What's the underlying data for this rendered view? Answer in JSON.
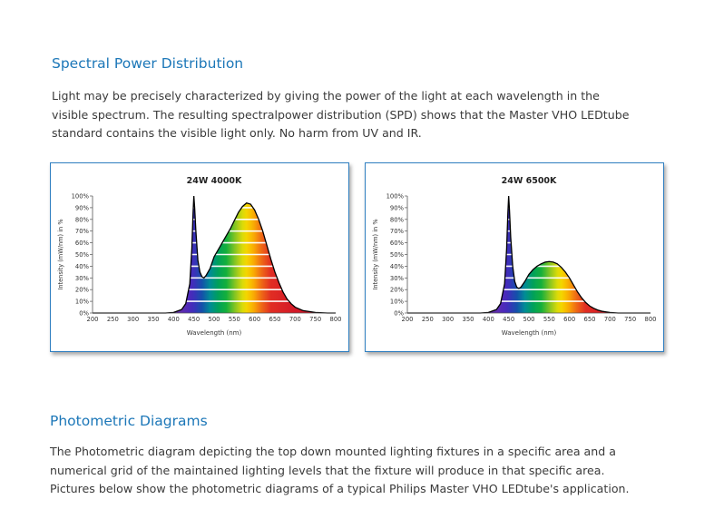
{
  "section1": {
    "title": "Spectral Power Distribution",
    "lines": [
      "Light may be precisely characterized by giving the power of the light at each wavelength in the",
      "visible spectrum. The resulting spectralpower distribution (SPD) shows that the Master VHO LEDtube",
      "standard contains the visible light only. No harm from UV and IR."
    ]
  },
  "section2": {
    "title": "Photometric Diagrams",
    "lines": [
      "The Photometric diagram depicting the top down mounted lighting fixtures in a specific area and a",
      "numerical grid of the maintained lighting levels that the fixture will produce in that specific area.",
      "Pictures below show the photometric diagrams of a typical Philips Master VHO LEDtube's application."
    ]
  },
  "chart_data": [
    {
      "type": "area",
      "title": "24W 4000K",
      "xlabel": "Wavelength (nm)",
      "ylabel": "Intensity (mW/nm) in %",
      "xlim": [
        200,
        800
      ],
      "ylim": [
        0,
        100
      ],
      "xticks": [
        "200",
        "250",
        "300",
        "350",
        "400",
        "450",
        "500",
        "550",
        "600",
        "650",
        "700",
        "750",
        "800"
      ],
      "yticks": [
        "0%",
        "10%",
        "20%",
        "30%",
        "40%",
        "50%",
        "60%",
        "70%",
        "80%",
        "90%",
        "100%"
      ],
      "grid": true,
      "x": [
        200,
        380,
        400,
        420,
        430,
        440,
        445,
        448,
        450,
        452,
        455,
        460,
        465,
        470,
        475,
        480,
        490,
        500,
        510,
        520,
        530,
        540,
        550,
        560,
        570,
        580,
        590,
        600,
        610,
        620,
        630,
        640,
        650,
        660,
        670,
        680,
        690,
        700,
        720,
        750,
        780,
        800
      ],
      "values": [
        0,
        0,
        0.5,
        3,
        8,
        25,
        55,
        85,
        100,
        90,
        70,
        45,
        35,
        31,
        30,
        32,
        38,
        48,
        54,
        60,
        66,
        72,
        79,
        86,
        91,
        94,
        93,
        88,
        80,
        70,
        58,
        46,
        35,
        26,
        18,
        12,
        8,
        5,
        2,
        0.5,
        0,
        0
      ]
    },
    {
      "type": "area",
      "title": "24W 6500K",
      "xlabel": "Wavelength (nm)",
      "ylabel": "Intensity (mW/nm) in %",
      "xlim": [
        200,
        800
      ],
      "ylim": [
        0,
        100
      ],
      "xticks": [
        "200",
        "250",
        "300",
        "350",
        "400",
        "450",
        "500",
        "550",
        "600",
        "650",
        "700",
        "750",
        "800"
      ],
      "yticks": [
        "0%",
        "10%",
        "20%",
        "30%",
        "40%",
        "50%",
        "60%",
        "70%",
        "80%",
        "90%",
        "100%"
      ],
      "grid": true,
      "x": [
        200,
        380,
        400,
        420,
        430,
        440,
        445,
        448,
        450,
        452,
        455,
        460,
        465,
        470,
        475,
        480,
        490,
        500,
        510,
        520,
        530,
        540,
        550,
        560,
        570,
        580,
        590,
        600,
        610,
        620,
        630,
        640,
        650,
        660,
        670,
        680,
        690,
        700,
        720,
        750,
        780,
        800
      ],
      "values": [
        0,
        0,
        0.5,
        3,
        8,
        25,
        55,
        85,
        100,
        88,
        65,
        40,
        27,
        22,
        21,
        22,
        27,
        33,
        37,
        40,
        42,
        43.5,
        44,
        43.5,
        42,
        39,
        35,
        30,
        24,
        18,
        13,
        9,
        6,
        4,
        2.5,
        1.5,
        1,
        0.5,
        0,
        0,
        0,
        0
      ]
    }
  ]
}
